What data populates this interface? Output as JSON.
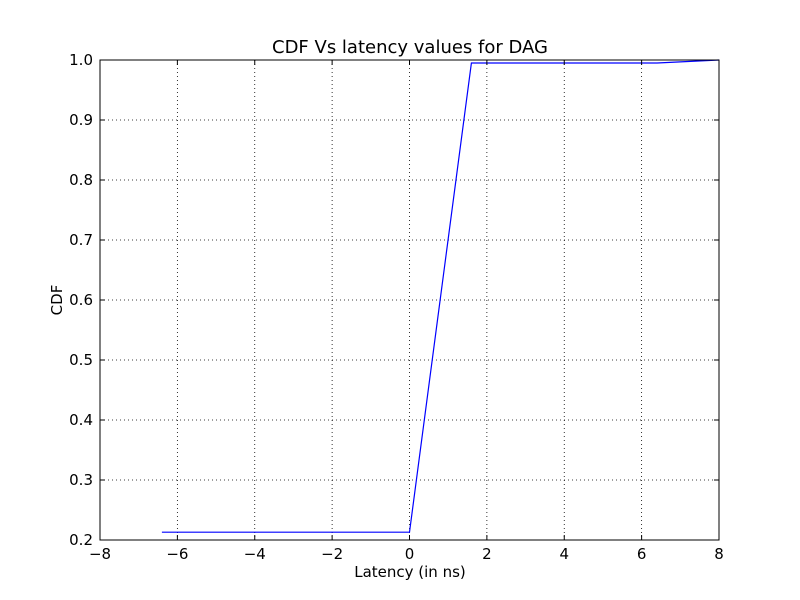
{
  "chart_data": {
    "type": "line",
    "title": "CDF Vs latency values for DAG",
    "xlabel": "Latency (in ns)",
    "ylabel": "CDF",
    "xlim": [
      -8,
      8
    ],
    "ylim": [
      0.2,
      1.0
    ],
    "xticks": [
      -8,
      -6,
      -4,
      -2,
      0,
      2,
      4,
      6,
      8
    ],
    "xtick_labels": [
      "−8",
      "−6",
      "−4",
      "−2",
      "0",
      "2",
      "4",
      "6",
      "8"
    ],
    "yticks": [
      0.2,
      0.3,
      0.4,
      0.5,
      0.6,
      0.7,
      0.8,
      0.9,
      1.0
    ],
    "ytick_labels": [
      "0.2",
      "0.3",
      "0.4",
      "0.5",
      "0.6",
      "0.7",
      "0.8",
      "0.9",
      "1.0"
    ],
    "grid": true,
    "series": [
      {
        "color": "#0000ff",
        "x": [
          -6.4,
          0.0,
          1.6,
          6.4,
          8.0
        ],
        "y": [
          0.213,
          0.213,
          0.995,
          0.995,
          1.0
        ]
      }
    ]
  }
}
